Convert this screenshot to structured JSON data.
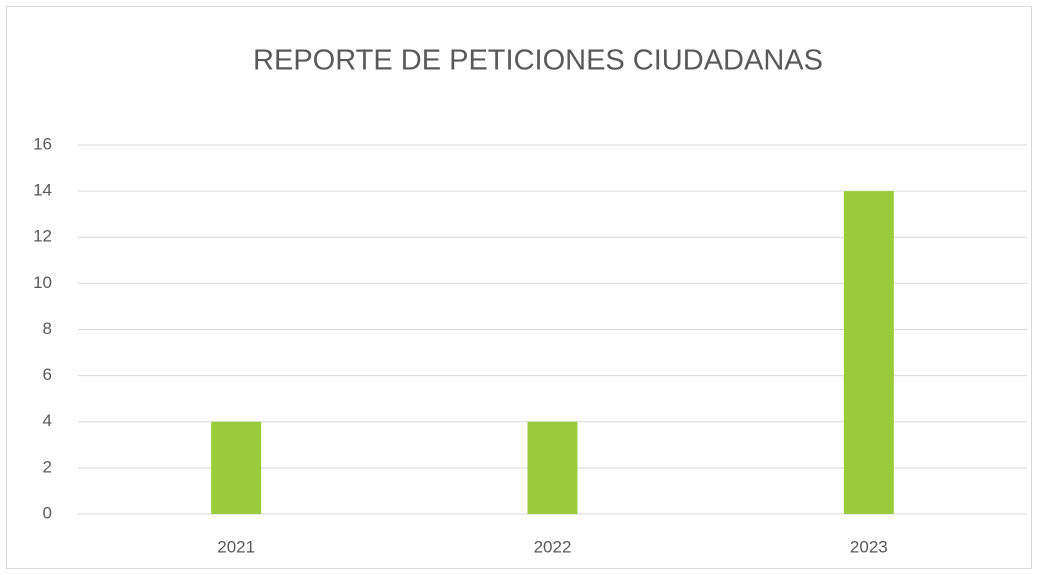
{
  "chart_data": {
    "type": "bar",
    "title": "REPORTE DE PETICIONES CIUDADANAS",
    "categories": [
      "2021",
      "2022",
      "2023"
    ],
    "values": [
      4,
      4,
      14
    ],
    "color": "#9acb3a",
    "ylim": [
      0,
      16
    ],
    "yticks": [
      0,
      2,
      4,
      6,
      8,
      10,
      12,
      14,
      16
    ],
    "grid": true
  }
}
